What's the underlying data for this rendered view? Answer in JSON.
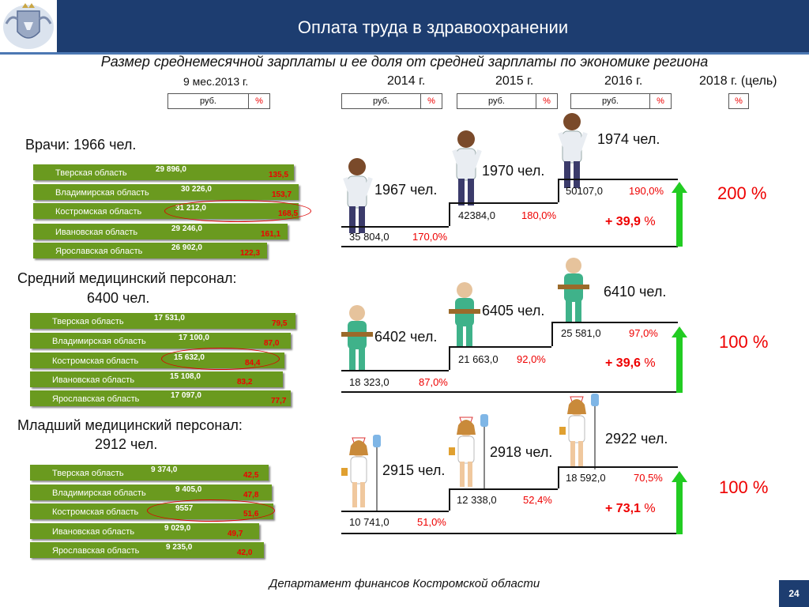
{
  "header": {
    "title": "Оплата труда в здравоохранении"
  },
  "subtitle": "Размер среднемесячной зарплаты и ее доля от средней зарплаты по экономике региона",
  "columns": {
    "c1": "9 мес.2013 г.",
    "c2": "2014 г.",
    "c3": "2015 г.",
    "c4": "2016 г.",
    "c5": "2018 г. (цель)",
    "unit_rub": "руб.",
    "unit_pct": "%"
  },
  "doctors": {
    "title": "Врачи:  1966 чел.",
    "rows": [
      {
        "region": "Тверская область",
        "value": "29 896,0",
        "percent": "135,5"
      },
      {
        "region": "Владимирская область",
        "value": "30 226,0",
        "percent": "153,7"
      },
      {
        "region": "Костромская область",
        "value": "31 212,0",
        "percent": "168,5"
      },
      {
        "region": "Ивановская область",
        "value": "29 246,0",
        "percent": "161,1"
      },
      {
        "region": "Ярославская область",
        "value": "26 902,0",
        "percent": "122,3"
      }
    ],
    "steps": [
      {
        "count": "1967 чел.",
        "value": "35 804,0",
        "percent": "170,0%"
      },
      {
        "count": "1970 чел.",
        "value": "42384,0",
        "percent": "180,0%"
      },
      {
        "count": "1974 чел.",
        "value": "50107,0",
        "percent": "190,0%"
      }
    ],
    "increase_prefix": "+ 39,9",
    "increase_suffix": "%",
    "target": "200 %"
  },
  "mid_staff": {
    "title_line1": "Средний медицинский персонал:",
    "title_line2": "6400 чел.",
    "rows": [
      {
        "region": "Тверская область",
        "value": "17 531,0",
        "percent": "79,5"
      },
      {
        "region": "Владимирская область",
        "value": "17 100,0",
        "percent": "87,0"
      },
      {
        "region": "Костромская область",
        "value": "15 632,0",
        "percent": "84,4"
      },
      {
        "region": "Ивановская область",
        "value": "15 108,0",
        "percent": "83,2"
      },
      {
        "region": "Ярославская область",
        "value": "17 097,0",
        "percent": "77,7"
      }
    ],
    "steps": [
      {
        "count": "6402 чел.",
        "value": "18 323,0",
        "percent": "87,0%"
      },
      {
        "count": "6405 чел.",
        "value": "21 663,0",
        "percent": "92,0%"
      },
      {
        "count": "6410 чел.",
        "value": "25 581,0",
        "percent": "97,0%"
      }
    ],
    "increase_prefix": "+ 39,6",
    "increase_suffix": "%",
    "target": "100 %"
  },
  "junior_staff": {
    "title_line1": "Младший медицинский персонал:",
    "title_line2": "2912 чел.",
    "rows": [
      {
        "region": "Тверская область",
        "value": "9 374,0",
        "percent": "42,5"
      },
      {
        "region": "Владимирская область",
        "value": "9 405,0",
        "percent": "47,8"
      },
      {
        "region": "Костромская область",
        "value": "9557",
        "percent": "51,6"
      },
      {
        "region": "Ивановская область",
        "value": "9 029,0",
        "percent": "49,7"
      },
      {
        "region": "Ярославская область",
        "value": "9 235,0",
        "percent": "42,0"
      }
    ],
    "steps": [
      {
        "count": "2915 чел.",
        "value": "10 741,0",
        "percent": "51,0%"
      },
      {
        "count": "2918 чел.",
        "value": "12 338,0",
        "percent": "52,4%"
      },
      {
        "count": "2922 чел.",
        "value": "18 592,0",
        "percent": "70,5%"
      }
    ],
    "increase_prefix": "+ 73,1",
    "increase_suffix": "%",
    "target": "100 %"
  },
  "footer": {
    "department": "Департамент финансов  Костромской области",
    "page": "24"
  },
  "colors": {
    "header": "#1d3d70",
    "bar": "#6a9a1f",
    "accent_red": "#e00000",
    "arrow": "#22cc22"
  }
}
